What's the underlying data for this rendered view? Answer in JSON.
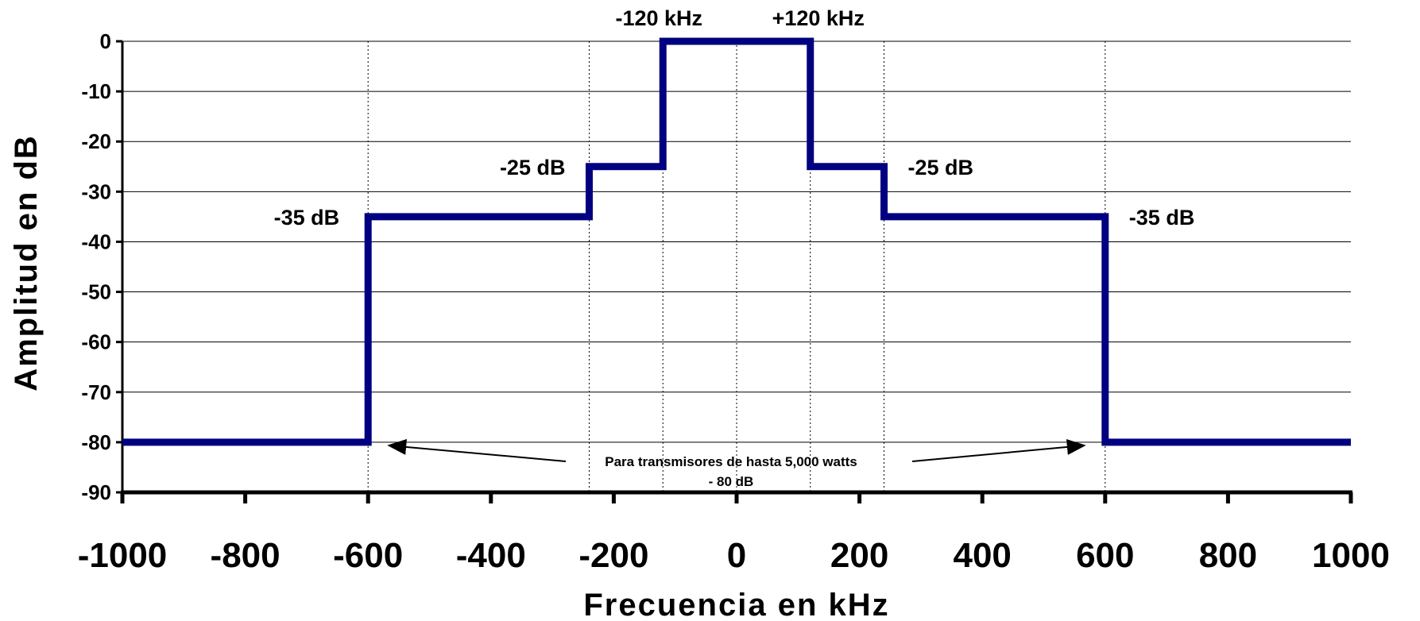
{
  "chart_data": {
    "type": "line",
    "xlabel": "Frecuencia en kHz",
    "ylabel": "Amplitud en dB",
    "xlim": [
      -1000,
      1000
    ],
    "ylim": [
      -90,
      0
    ],
    "x_ticks": [
      "-1000",
      "-800",
      "-600",
      "-400",
      "-200",
      "0",
      "200",
      "400",
      "600",
      "800",
      "1000"
    ],
    "y_ticks": [
      "0",
      "-10",
      "-20",
      "-30",
      "-40",
      "-50",
      "-60",
      "-70",
      "-80",
      "-90"
    ],
    "grid": "horizontal",
    "series": [
      {
        "color": "#000080",
        "x": [
          -1000,
          -600,
          -600,
          -240,
          -240,
          -120,
          -120,
          120,
          120,
          240,
          240,
          600,
          600,
          1000
        ],
        "y": [
          -80,
          -80,
          -35,
          -35,
          -25,
          -25,
          0,
          0,
          -25,
          -25,
          -35,
          -35,
          -80,
          -80
        ]
      }
    ],
    "reference_lines_x": [
      -600,
      -240,
      -120,
      0,
      120,
      240,
      600
    ],
    "annotations": {
      "minus_120": "-120 kHz",
      "plus_120": "+120 kHz",
      "left_25": "-25 dB",
      "right_25": "-25 dB",
      "left_35": "-35 dB",
      "right_35": "-35 dB",
      "note_line1": "Para transmisores de hasta 5,000 watts",
      "note_line2": "- 80 dB"
    }
  }
}
